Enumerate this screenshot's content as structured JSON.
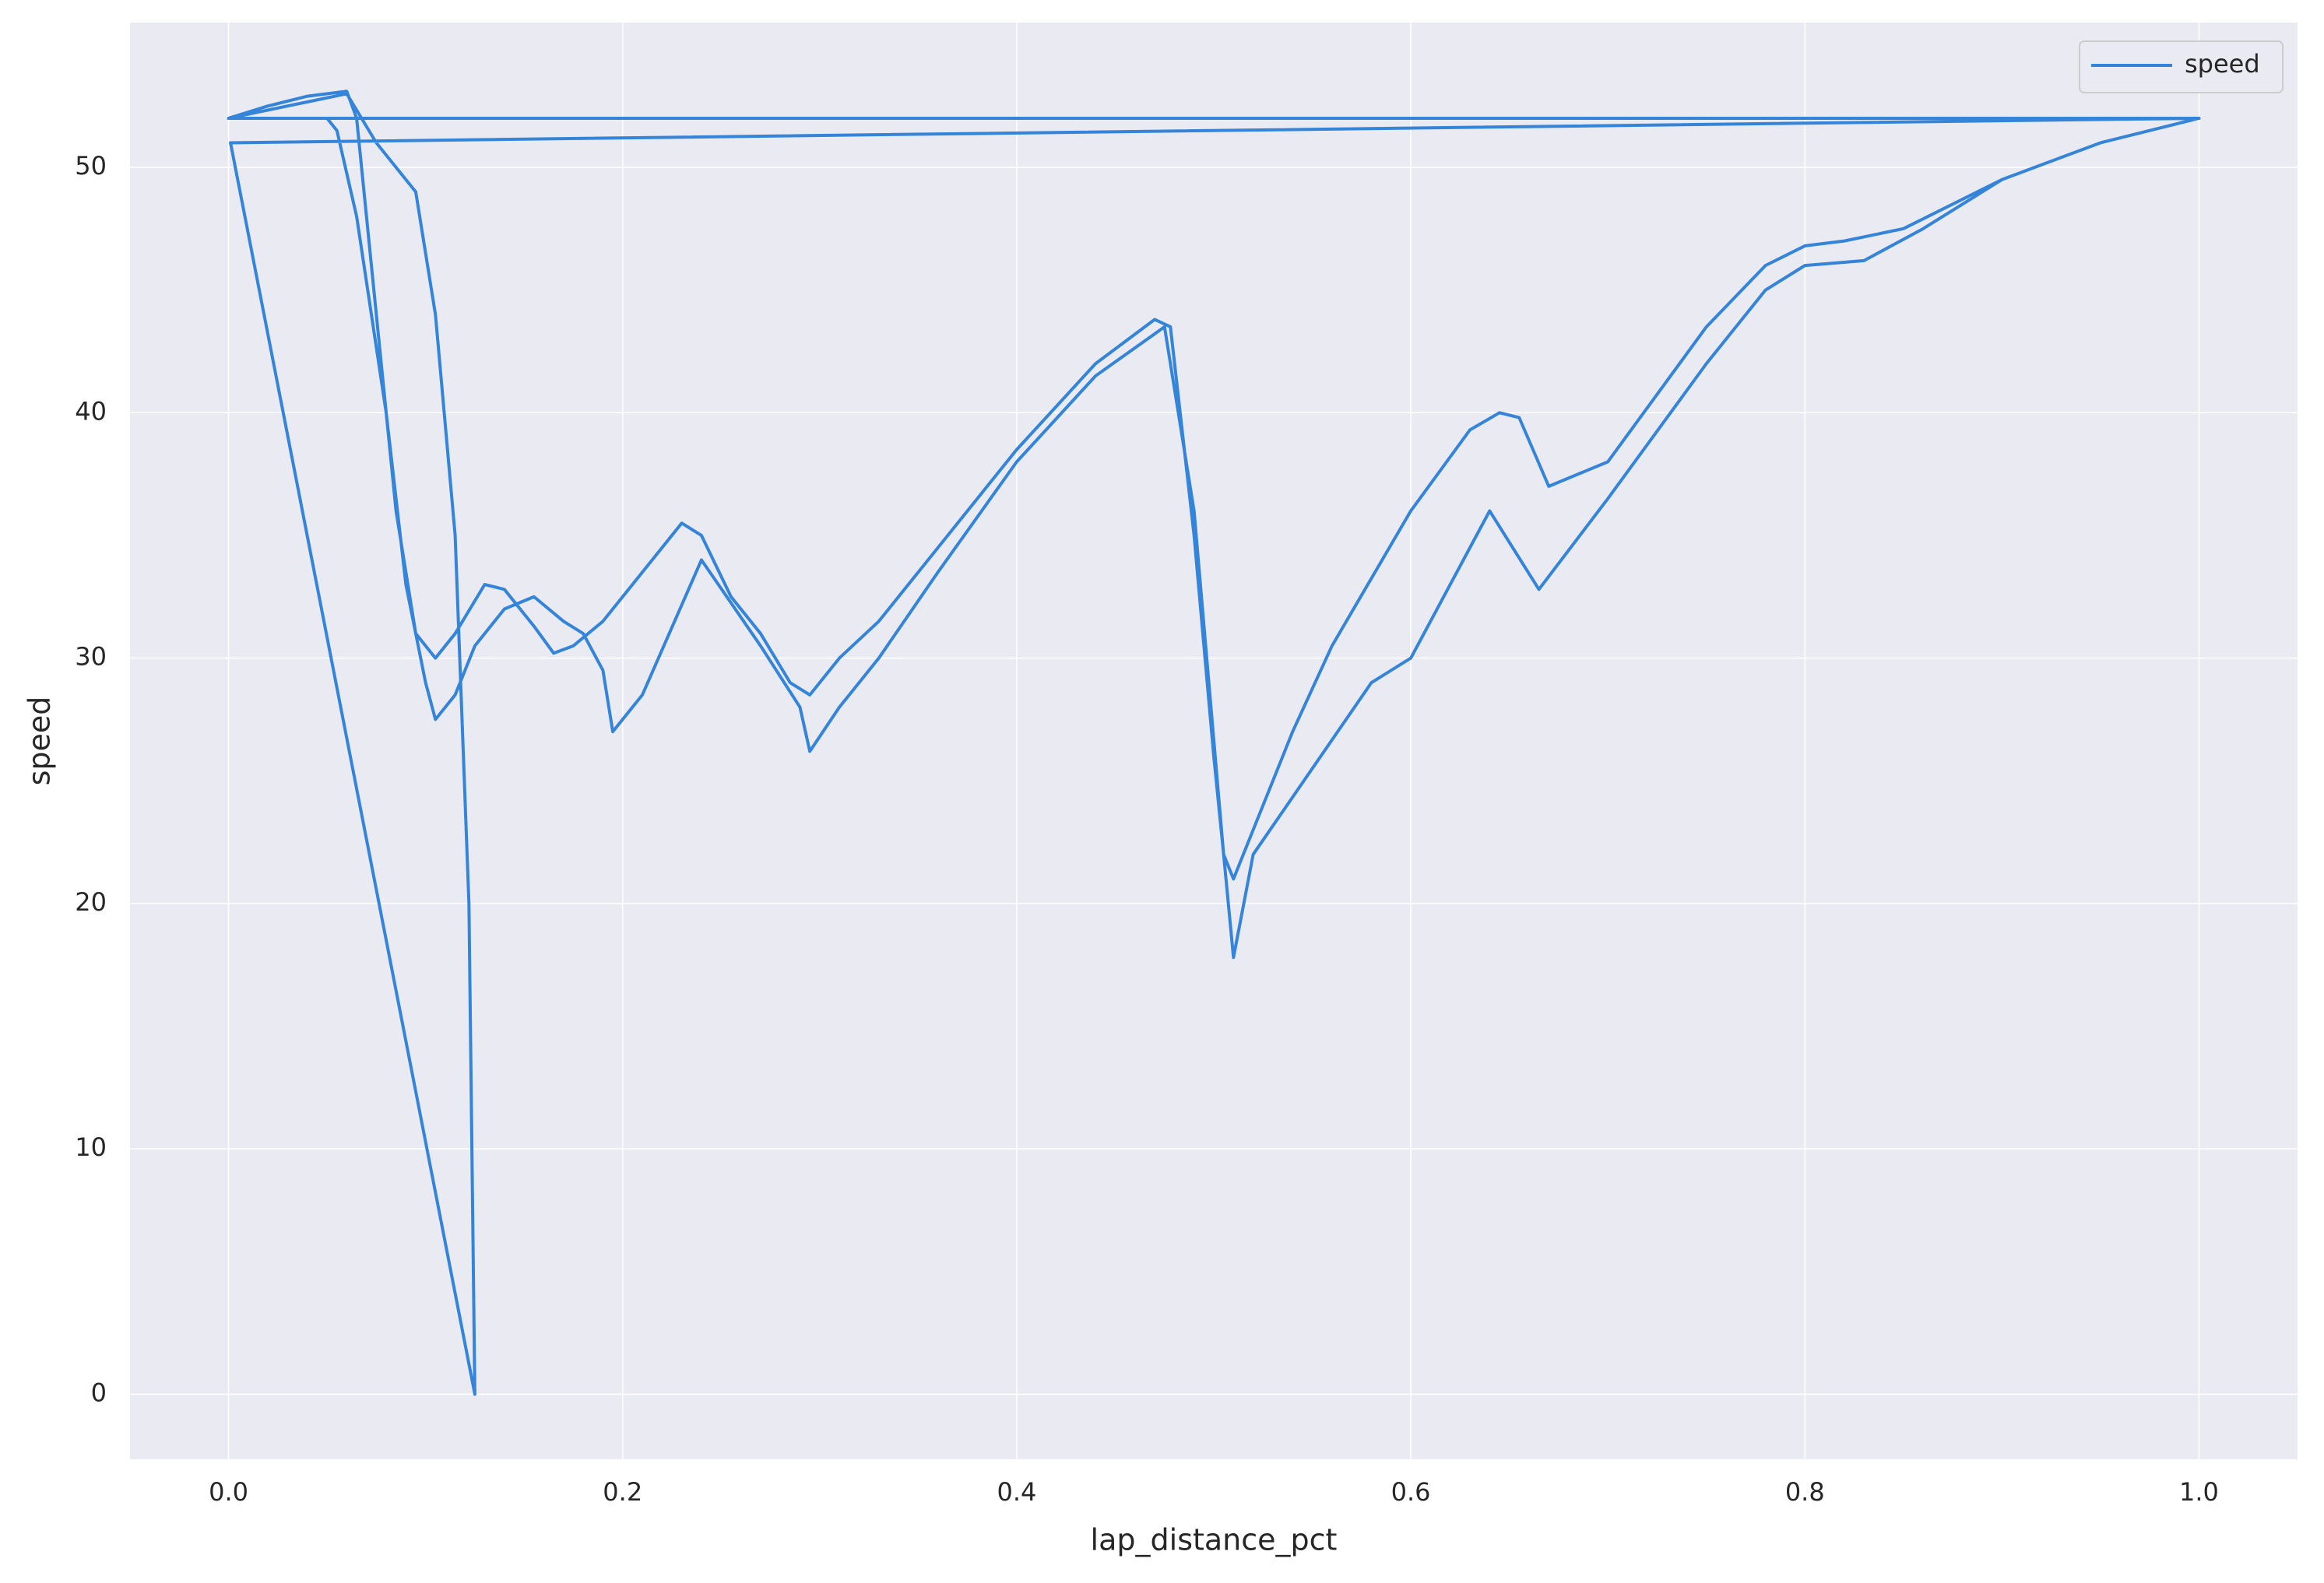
{
  "chart_data": {
    "type": "line",
    "x_label": "lap_distance_pct",
    "y_label": "speed",
    "x": [
      0.0,
      0.06,
      0.075,
      0.095,
      0.105,
      0.115,
      0.122,
      0.125,
      0.001,
      1.0,
      0.0,
      0.02,
      0.04,
      0.06,
      0.065,
      0.075,
      0.085,
      0.095,
      0.105,
      0.115,
      0.13,
      0.14,
      0.155,
      0.165,
      0.175,
      0.19,
      0.21,
      0.23,
      0.24,
      0.255,
      0.27,
      0.285,
      0.295,
      0.31,
      0.33,
      0.36,
      0.4,
      0.44,
      0.47,
      0.478,
      0.49,
      0.5,
      0.505,
      0.51,
      0.52,
      0.54,
      0.56,
      0.6,
      0.63,
      0.645,
      0.655,
      0.67,
      0.7,
      0.75,
      0.78,
      0.8,
      0.82,
      0.85,
      0.9,
      0.95,
      1.0,
      0.0,
      0.03,
      0.05,
      0.055,
      0.065,
      0.08,
      0.09,
      0.1,
      0.105,
      0.115,
      0.125,
      0.14,
      0.155,
      0.17,
      0.18,
      0.19,
      0.195,
      0.21,
      0.24,
      0.27,
      0.29,
      0.295,
      0.31,
      0.33,
      0.36,
      0.4,
      0.44,
      0.475,
      0.49,
      0.505,
      0.51,
      0.52,
      0.55,
      0.58,
      0.6,
      0.64,
      0.665,
      0.7,
      0.75,
      0.78,
      0.8,
      0.83,
      0.86,
      0.9,
      0.95,
      1.0
    ],
    "series": [
      {
        "name": "speed",
        "color": "#3484d9",
        "values": [
          52,
          53,
          51,
          49,
          44,
          35,
          20,
          0,
          51,
          52,
          52,
          52.5,
          52.9,
          53.1,
          52,
          44,
          36,
          31,
          30,
          31,
          33,
          32.8,
          31.3,
          30.2,
          30.5,
          31.5,
          33.5,
          35.5,
          35,
          32.5,
          31,
          29,
          28.5,
          30,
          31.5,
          34.5,
          38.5,
          42,
          43.8,
          43.5,
          35,
          26,
          22,
          21,
          23,
          27,
          30.5,
          36,
          39.3,
          40,
          39.8,
          37,
          38,
          43.5,
          46,
          46.8,
          47,
          47.5,
          49.5,
          51,
          52,
          52,
          52,
          52,
          51.5,
          48,
          40,
          33,
          29,
          27.5,
          28.5,
          30.5,
          32,
          32.5,
          31.5,
          31,
          29.5,
          27,
          28.5,
          34,
          30.5,
          28,
          26.2,
          28,
          30,
          33.5,
          38,
          41.5,
          43.5,
          36,
          22,
          17.8,
          22,
          25.5,
          29,
          30,
          36,
          32.8,
          36.5,
          42,
          45,
          46,
          46.2,
          47.5,
          49.5,
          51,
          52
        ]
      }
    ],
    "xlim": [
      -0.05,
      1.05
    ],
    "ylim": [
      -2.65,
      55.9
    ],
    "xticks": [
      {
        "value": 0,
        "label": "0.0"
      },
      0.2,
      0.4,
      0.6,
      0.8,
      {
        "value": 1,
        "label": "1.0"
      }
    ],
    "yticks": [
      0,
      10,
      20,
      30,
      40,
      50
    ],
    "grid": true,
    "legend": "upper right"
  }
}
